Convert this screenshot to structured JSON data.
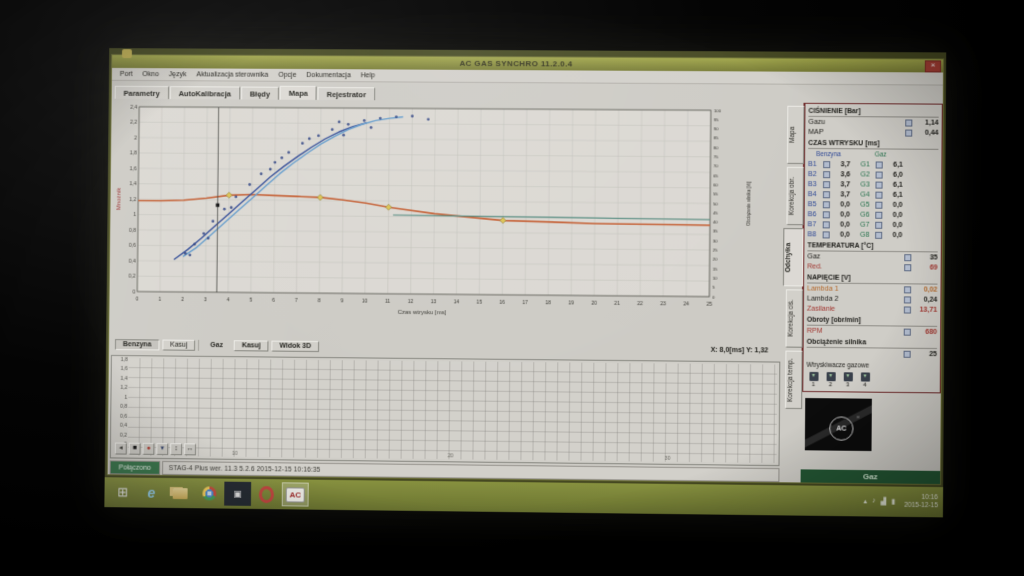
{
  "window": {
    "title": "AC GAS SYNCHRO 11.2.0.4",
    "close_label": "×",
    "menu": [
      "Port",
      "Okno",
      "Język",
      "Aktualizacja sterownika",
      "Opcje",
      "Dokumentacja",
      "Help"
    ],
    "tabs": [
      {
        "label": "Parametry",
        "active": false
      },
      {
        "label": "AutoKalibracja",
        "active": false
      },
      {
        "label": "Błędy",
        "active": false
      },
      {
        "label": "Mapa",
        "active": true
      },
      {
        "label": "Rejestrator",
        "active": false
      }
    ],
    "side_tabs": [
      {
        "label": "Mapa",
        "active": false
      },
      {
        "label": "Korekcja obr.",
        "active": false
      },
      {
        "label": "Odchyłka",
        "active": true
      },
      {
        "label": "Korekcja ciś.",
        "active": false
      },
      {
        "label": "Korekcja temp.",
        "active": false
      }
    ]
  },
  "chart_data": {
    "type": "scatter",
    "title": "",
    "xlabel": "Czas wtrysku [ms]",
    "ylabel_left": "Mnożnik",
    "ylabel_right": "Obciążenie silnika [%]",
    "xlim": [
      0,
      25
    ],
    "x_step": 1,
    "ylim_left": [
      0,
      2.4
    ],
    "y_step_left": 0.2,
    "ylim_right": [
      0,
      100
    ],
    "y_step_right": 5,
    "grid": true,
    "series": [
      {
        "name": "Mapa benzyny",
        "role": "petrol_map",
        "type": "line",
        "color": "#d95b25",
        "width": 1.6,
        "x": [
          0,
          1,
          2,
          3,
          4,
          5,
          6,
          7,
          8,
          9,
          10,
          11,
          13,
          16,
          20,
          25
        ],
        "y": [
          1.18,
          1.18,
          1.19,
          1.22,
          1.26,
          1.27,
          1.26,
          1.25,
          1.24,
          1.21,
          1.17,
          1.12,
          1.04,
          0.96,
          0.93,
          0.92
        ]
      },
      {
        "name": "Mapa gazu (krzywa ciemna)",
        "role": "gas_map_a",
        "type": "line",
        "color": "#2b4ba8",
        "width": 1.4,
        "x": [
          1.6,
          2.2,
          2.8,
          3.4,
          4.0,
          4.6,
          5.2,
          5.8,
          6.4,
          7.0,
          7.6,
          8.2,
          8.8,
          9.4,
          10.0
        ],
        "y": [
          0.42,
          0.55,
          0.7,
          0.86,
          1.02,
          1.18,
          1.34,
          1.5,
          1.64,
          1.77,
          1.89,
          2.0,
          2.09,
          2.16,
          2.21
        ]
      },
      {
        "name": "Mapa gazu (krzywa jasna)",
        "role": "gas_map_b",
        "type": "line",
        "color": "#5aa0dc",
        "width": 1.4,
        "x": [
          2.0,
          2.6,
          3.2,
          3.8,
          4.4,
          5.0,
          5.6,
          6.2,
          6.8,
          7.4,
          8.0,
          8.6,
          9.2,
          9.8,
          10.4,
          11.0,
          11.6
        ],
        "y": [
          0.46,
          0.58,
          0.74,
          0.9,
          1.06,
          1.22,
          1.38,
          1.54,
          1.68,
          1.81,
          1.93,
          2.03,
          2.12,
          2.19,
          2.24,
          2.27,
          2.29
        ]
      },
      {
        "name": "Linia pozioma",
        "role": "teal_line",
        "type": "line",
        "color": "#4a8f80",
        "width": 1.1,
        "x": [
          11.2,
          25
        ],
        "y": [
          1.02,
          0.99
        ]
      },
      {
        "name": "Punkty mapy gazu",
        "role": "scatter",
        "type": "scatter",
        "color": "#26408f",
        "points": [
          [
            2.1,
            0.5
          ],
          [
            2.5,
            0.62
          ],
          [
            2.9,
            0.76
          ],
          [
            3.3,
            0.92
          ],
          [
            3.8,
            1.08
          ],
          [
            4.3,
            1.24
          ],
          [
            4.9,
            1.4
          ],
          [
            5.4,
            1.54
          ],
          [
            6.0,
            1.69
          ],
          [
            6.6,
            1.82
          ],
          [
            7.2,
            1.94
          ],
          [
            7.9,
            2.04
          ],
          [
            8.5,
            2.12
          ],
          [
            9.2,
            2.19
          ],
          [
            9.9,
            2.24
          ],
          [
            10.6,
            2.27
          ],
          [
            11.3,
            2.29
          ],
          [
            12.0,
            2.3
          ],
          [
            12.7,
            2.26
          ],
          [
            3.1,
            0.7
          ],
          [
            4.1,
            1.1
          ],
          [
            5.8,
            1.6
          ],
          [
            7.5,
            2.0
          ],
          [
            9.0,
            2.05
          ],
          [
            10.2,
            2.15
          ],
          [
            2.3,
            0.48
          ],
          [
            6.3,
            1.75
          ],
          [
            8.8,
            2.22
          ]
        ]
      },
      {
        "name": "Punkty mapy benzyny",
        "role": "diamonds",
        "type": "diamond",
        "color": "#e8c93e",
        "points": [
          [
            4,
            1.26
          ],
          [
            8,
            1.24
          ],
          [
            11,
            1.12
          ],
          [
            16,
            0.96
          ]
        ]
      }
    ],
    "cursor": {
      "x": 3.5,
      "y": 1.13
    }
  },
  "map_controls": {
    "benzyna": "Benzyna",
    "kasuj_benzyna": "Kasuj",
    "gaz": "Gaz",
    "kasuj_gaz": "Kasuj",
    "widok_3d": "Widok 3D",
    "cursor_readout": "X: 8,0[ms] Y: 1,32"
  },
  "oscilloscope": {
    "y_labels": [
      "1,8",
      "1,6",
      "1,4",
      "1,2",
      "1",
      "0,8",
      "0,6",
      "0,4",
      "0,2",
      "0"
    ],
    "x_labels": [
      "10",
      "20",
      "30"
    ],
    "buttons": [
      {
        "name": "step-back",
        "glyph": "◂",
        "color": "#33332d"
      },
      {
        "name": "stop",
        "glyph": "■",
        "color": "#111111"
      },
      {
        "name": "record",
        "glyph": "●",
        "color": "#c0392b"
      },
      {
        "name": "marker",
        "glyph": "▾",
        "color": "#2c3e70"
      },
      {
        "name": "zoom-vertical",
        "glyph": "↕",
        "color": "#33332d"
      },
      {
        "name": "zoom-horizontal",
        "glyph": "↔",
        "color": "#33332d"
      }
    ]
  },
  "panel": {
    "sections": [
      {
        "header": "CIŚNIENIE [Bar]",
        "rows": [
          {
            "label": "Gazu",
            "value": "1,14"
          },
          {
            "label": "MAP",
            "value": "0,44"
          }
        ]
      },
      {
        "header": "CZAS WTRYSKU [ms]",
        "cols": [
          "Benzyna",
          "Gaz"
        ],
        "pair_rows": [
          [
            "B1",
            "3,7",
            "G1",
            "6,1"
          ],
          [
            "B2",
            "3,6",
            "G2",
            "6,0"
          ],
          [
            "B3",
            "3,7",
            "G3",
            "6,1"
          ],
          [
            "B4",
            "3,7",
            "G4",
            "6,1"
          ],
          [
            "B5",
            "0,0",
            "G5",
            "0,0"
          ],
          [
            "B6",
            "0,0",
            "G6",
            "0,0"
          ],
          [
            "B7",
            "0,0",
            "G7",
            "0,0"
          ],
          [
            "B8",
            "0,0",
            "G8",
            "0,0"
          ]
        ]
      },
      {
        "header": "TEMPERATURA [°C]",
        "rows": [
          {
            "label": "Gaz",
            "value": "35"
          },
          {
            "label": "Red.",
            "value": "69",
            "color": "red"
          }
        ]
      },
      {
        "header": "NAPIĘCIE [V]",
        "rows": [
          {
            "label": "Lambda 1",
            "value": "0,02",
            "color": "orange"
          },
          {
            "label": "Lambda 2",
            "value": "0,24"
          },
          {
            "label": "Zasilanie",
            "value": "13,71",
            "color": "red"
          }
        ]
      },
      {
        "header": "Obroty [obr/min]",
        "rows": [
          {
            "label": "RPM",
            "value": "680",
            "color": "red"
          }
        ]
      },
      {
        "header": "Obciążenie silnika",
        "rows": [
          {
            "label": "",
            "value": "25"
          }
        ]
      }
    ],
    "injectors": {
      "label": "Wtryskiwacze gazowe",
      "items": [
        "1",
        "2",
        "3",
        "4"
      ]
    }
  },
  "status_bar": {
    "connection": "Połączono",
    "controller_info": "STAG-4 Plus   wer. 11.3 5.2.6    2015-12-15 10:16:35"
  },
  "branding": {
    "logo_text": "AC",
    "logo_reg": "®",
    "fuel_button": "Gaz"
  },
  "taskbar": {
    "icons": [
      {
        "name": "start",
        "glyph": "⊞",
        "active": false
      },
      {
        "name": "internet-explorer",
        "glyph": "e",
        "active": false
      },
      {
        "name": "file-explorer",
        "glyph": "",
        "active": false
      },
      {
        "name": "chrome",
        "glyph": "",
        "active": false
      },
      {
        "name": "photos",
        "glyph": "▣",
        "active": false
      },
      {
        "name": "opera",
        "glyph": "",
        "active": false
      },
      {
        "name": "acgas",
        "glyph": "AC",
        "active": true
      }
    ],
    "tray": [
      {
        "name": "show-hidden",
        "glyph": "▴"
      },
      {
        "name": "volume",
        "glyph": "♪"
      },
      {
        "name": "network",
        "glyph": "▟"
      },
      {
        "name": "battery",
        "glyph": "▮"
      }
    ],
    "clock": {
      "time": "10:16",
      "date": "2015-12-15"
    }
  }
}
